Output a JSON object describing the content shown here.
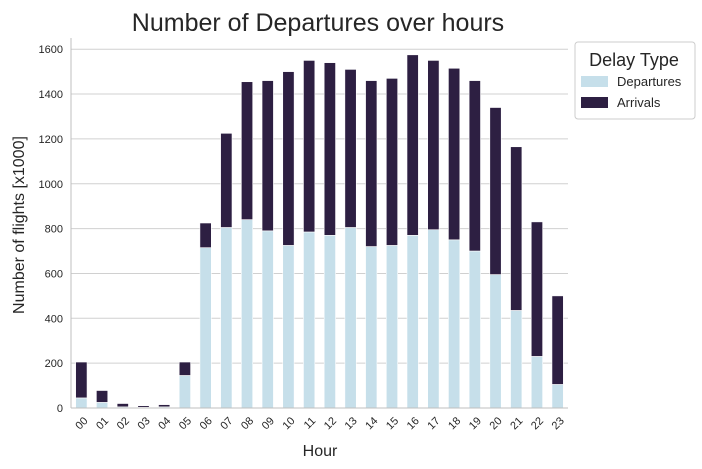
{
  "chart_data": {
    "type": "bar",
    "stacked": true,
    "title": "Number of Departures over hours",
    "xlabel": "Hour",
    "ylabel": "Number of flights [x1000]",
    "ylim": [
      0,
      1650
    ],
    "yticks": [
      0,
      200,
      400,
      600,
      800,
      1000,
      1200,
      1400,
      1600
    ],
    "grid": "horizontal",
    "categories": [
      "00",
      "01",
      "02",
      "03",
      "04",
      "05",
      "06",
      "07",
      "08",
      "09",
      "10",
      "11",
      "12",
      "13",
      "14",
      "15",
      "16",
      "17",
      "18",
      "19",
      "20",
      "21",
      "22",
      "23"
    ],
    "series": [
      {
        "name": "Departures",
        "color": "#c6dfea",
        "values": [
          45,
          25,
          5,
          3,
          5,
          145,
          715,
          805,
          840,
          790,
          725,
          785,
          770,
          805,
          720,
          725,
          770,
          795,
          750,
          700,
          595,
          435,
          230,
          105
        ]
      },
      {
        "name": "Arrivals",
        "color": "#2d1f42",
        "values": [
          160,
          53,
          15,
          7,
          10,
          60,
          110,
          420,
          615,
          670,
          775,
          765,
          770,
          705,
          740,
          745,
          805,
          755,
          765,
          760,
          745,
          730,
          600,
          395
        ]
      }
    ],
    "legend": {
      "title": "Delay Type",
      "position": "outside-top-right"
    }
  }
}
